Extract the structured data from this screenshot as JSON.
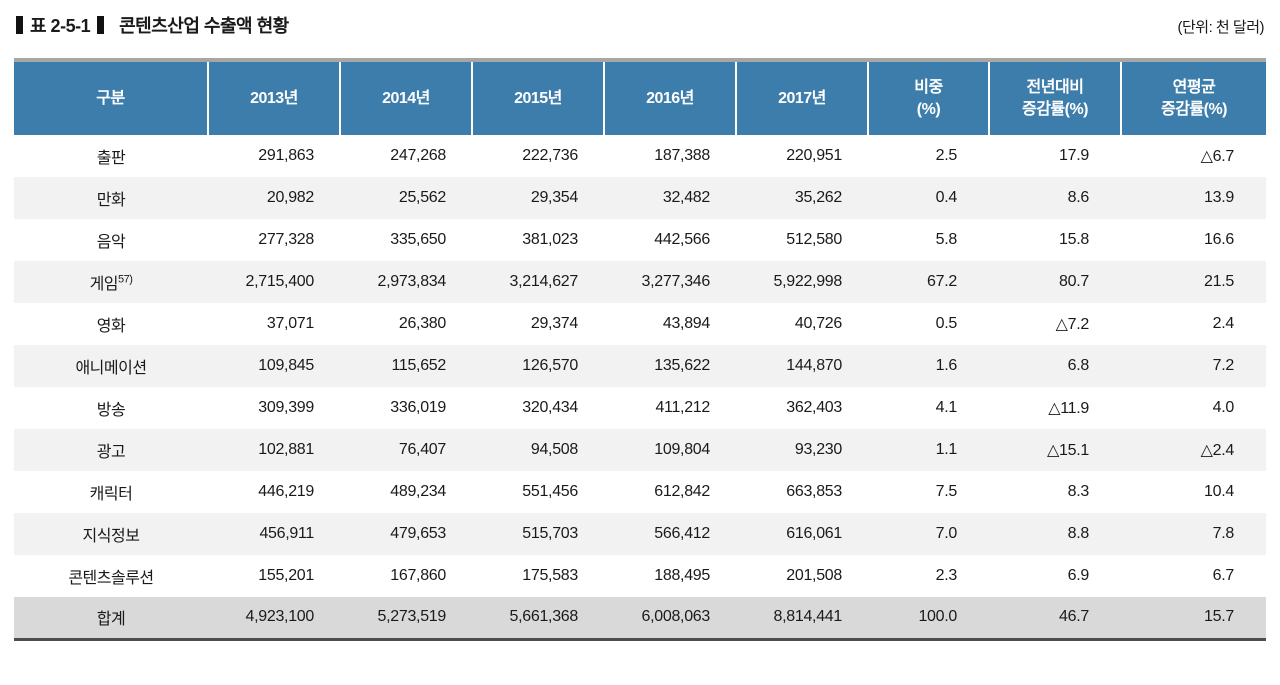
{
  "title": {
    "table_number": "표 2-5-1",
    "table_title": "콘텐츠산업 수출액 현황",
    "unit_label": "(단위: 천 달러)"
  },
  "table": {
    "type": "table",
    "columns": [
      "구분",
      "2013년",
      "2014년",
      "2015년",
      "2016년",
      "2017년",
      "비중\n(%)",
      "전년대비\n증감률(%)",
      "연평균\n증감률(%)"
    ],
    "rows": [
      {
        "category": "출판",
        "footnote": "",
        "values": [
          "291,863",
          "247,268",
          "222,736",
          "187,388",
          "220,951",
          "2.5",
          "17.9",
          "△6.7"
        ]
      },
      {
        "category": "만화",
        "footnote": "",
        "values": [
          "20,982",
          "25,562",
          "29,354",
          "32,482",
          "35,262",
          "0.4",
          "8.6",
          "13.9"
        ]
      },
      {
        "category": "음악",
        "footnote": "",
        "values": [
          "277,328",
          "335,650",
          "381,023",
          "442,566",
          "512,580",
          "5.8",
          "15.8",
          "16.6"
        ]
      },
      {
        "category": "게임",
        "footnote": "57)",
        "values": [
          "2,715,400",
          "2,973,834",
          "3,214,627",
          "3,277,346",
          "5,922,998",
          "67.2",
          "80.7",
          "21.5"
        ]
      },
      {
        "category": "영화",
        "footnote": "",
        "values": [
          "37,071",
          "26,380",
          "29,374",
          "43,894",
          "40,726",
          "0.5",
          "△7.2",
          "2.4"
        ]
      },
      {
        "category": "애니메이션",
        "footnote": "",
        "values": [
          "109,845",
          "115,652",
          "126,570",
          "135,622",
          "144,870",
          "1.6",
          "6.8",
          "7.2"
        ]
      },
      {
        "category": "방송",
        "footnote": "",
        "values": [
          "309,399",
          "336,019",
          "320,434",
          "411,212",
          "362,403",
          "4.1",
          "△11.9",
          "4.0"
        ]
      },
      {
        "category": "광고",
        "footnote": "",
        "values": [
          "102,881",
          "76,407",
          "94,508",
          "109,804",
          "93,230",
          "1.1",
          "△15.1",
          "△2.4"
        ]
      },
      {
        "category": "캐릭터",
        "footnote": "",
        "values": [
          "446,219",
          "489,234",
          "551,456",
          "612,842",
          "663,853",
          "7.5",
          "8.3",
          "10.4"
        ]
      },
      {
        "category": "지식정보",
        "footnote": "",
        "values": [
          "456,911",
          "479,653",
          "515,703",
          "566,412",
          "616,061",
          "7.0",
          "8.8",
          "7.8"
        ]
      },
      {
        "category": "콘텐츠솔루션",
        "footnote": "",
        "values": [
          "155,201",
          "167,860",
          "175,583",
          "188,495",
          "201,508",
          "2.3",
          "6.9",
          "6.7"
        ]
      }
    ],
    "total_row": {
      "category": "합계",
      "values": [
        "4,923,100",
        "5,273,519",
        "5,661,368",
        "6,008,063",
        "8,814,441",
        "100.0",
        "46.7",
        "15.7"
      ]
    }
  },
  "colors": {
    "header_bg": "#3d7dab",
    "alt_row_bg": "#f2f2f2",
    "total_row_bg": "#d9d9d9",
    "top_rule": "#a6a6a6",
    "bottom_rule": "#4d4d4d"
  }
}
